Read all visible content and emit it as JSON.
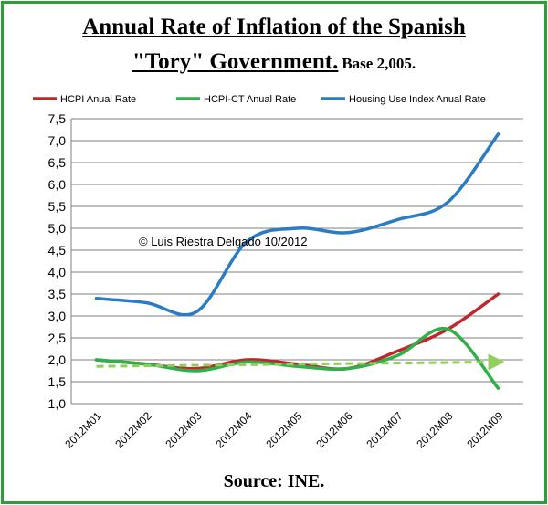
{
  "chart_data": {
    "type": "line",
    "title_line1": "Annual Rate of Inflation of the Spanish",
    "title_line2_main": "\"Tory\" Government.",
    "title_line2_sub": "Base 2,005.",
    "source": "Source: INE.",
    "watermark": "© Luis Riestra Delgado 10/2012",
    "categories": [
      "2012M01",
      "2012M02",
      "2012M03",
      "2012M04",
      "2012M05",
      "2012M06",
      "2012M07",
      "2012M08",
      "2012M09"
    ],
    "ylim": [
      1.0,
      7.5
    ],
    "yticks": [
      "1,0",
      "1,5",
      "2,0",
      "2,5",
      "3,0",
      "3,5",
      "4,0",
      "4,5",
      "5,0",
      "5,5",
      "6,0",
      "6,5",
      "7,0",
      "7,5"
    ],
    "grid": true,
    "legend_position": "top",
    "series": [
      {
        "name": "HCPI Anual Rate",
        "color": "#c0262d",
        "values": [
          2.0,
          1.9,
          1.8,
          2.0,
          1.9,
          1.8,
          2.2,
          2.7,
          3.5
        ]
      },
      {
        "name": "HCPI-CT Anual Rate",
        "color": "#2fb04a",
        "values": [
          2.0,
          1.9,
          1.75,
          1.95,
          1.85,
          1.8,
          2.1,
          2.7,
          1.35
        ]
      },
      {
        "name": "Housing Use Index Anual Rate",
        "color": "#2c7cc4",
        "values": [
          3.4,
          3.3,
          3.1,
          4.7,
          5.0,
          4.9,
          5.2,
          5.6,
          7.15
        ]
      }
    ],
    "trendline": {
      "color": "#8fcf5a",
      "style": "dashed",
      "start": 1.85,
      "end": 1.95
    }
  }
}
